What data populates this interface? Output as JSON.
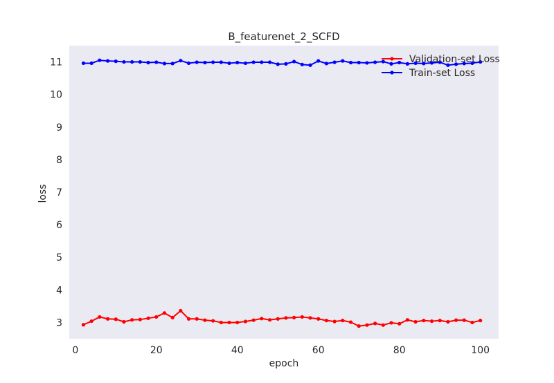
{
  "chart_data": {
    "type": "line",
    "title": "B_featurenet_2_SCFD",
    "xlabel": "epoch",
    "ylabel": "loss",
    "xlim": [
      -1.5,
      104.5
    ],
    "ylim": [
      2.5,
      11.5
    ],
    "xticks": [
      0,
      20,
      40,
      60,
      80,
      100
    ],
    "yticks": [
      3,
      4,
      5,
      6,
      7,
      8,
      9,
      10,
      11
    ],
    "grid": false,
    "legend_position": "top-right",
    "x": [
      2,
      4,
      6,
      8,
      10,
      12,
      14,
      16,
      18,
      20,
      22,
      24,
      26,
      28,
      30,
      32,
      34,
      36,
      38,
      40,
      42,
      44,
      46,
      48,
      50,
      52,
      54,
      56,
      58,
      60,
      62,
      64,
      66,
      68,
      70,
      72,
      74,
      76,
      78,
      80,
      82,
      84,
      86,
      88,
      90,
      92,
      94,
      96,
      98,
      100
    ],
    "series": [
      {
        "name": "Validation-set Loss",
        "color": "#ff0000",
        "values": [
          2.93,
          3.04,
          3.17,
          3.11,
          3.1,
          3.02,
          3.08,
          3.09,
          3.13,
          3.17,
          3.29,
          3.15,
          3.36,
          3.11,
          3.11,
          3.07,
          3.05,
          3.0,
          3.0,
          3.0,
          3.03,
          3.07,
          3.12,
          3.08,
          3.11,
          3.14,
          3.15,
          3.17,
          3.14,
          3.11,
          3.06,
          3.03,
          3.06,
          3.01,
          2.89,
          2.92,
          2.97,
          2.92,
          2.99,
          2.96,
          3.08,
          3.02,
          3.06,
          3.04,
          3.06,
          3.02,
          3.07,
          3.07,
          3.0,
          3.06
        ]
      },
      {
        "name": "Train-set Loss",
        "color": "#0000ff",
        "values": [
          10.96,
          10.96,
          11.05,
          11.03,
          11.02,
          11.0,
          11.0,
          11.0,
          10.98,
          10.99,
          10.95,
          10.95,
          11.04,
          10.96,
          10.99,
          10.98,
          10.99,
          10.99,
          10.96,
          10.98,
          10.96,
          10.99,
          10.99,
          10.99,
          10.93,
          10.94,
          11.01,
          10.92,
          10.9,
          11.03,
          10.95,
          10.99,
          11.03,
          10.98,
          10.98,
          10.97,
          10.99,
          11.01,
          10.94,
          10.98,
          10.94,
          10.96,
          10.95,
          10.97,
          10.99,
          10.9,
          10.93,
          10.95,
          10.96,
          11.0
        ]
      }
    ]
  }
}
